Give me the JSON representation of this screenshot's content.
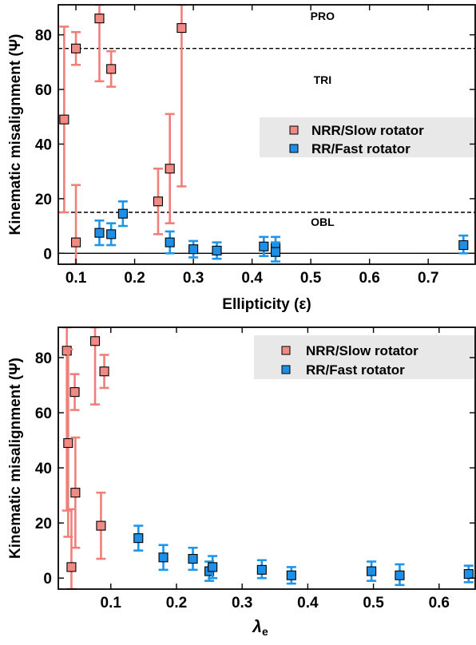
{
  "colors": {
    "slow": "#f08a84",
    "slow_err": "#f07f7a",
    "fast": "#1d8fe6",
    "fast_err": "#1d95ea",
    "legend_bg": "#e8e8e8"
  },
  "legend": {
    "slow_label": "NRR/Slow rotator",
    "fast_label": "RR/Fast rotator"
  },
  "chart_data": [
    {
      "type": "scatter",
      "xlabel": "Ellipticity (ε)",
      "ylabel": "Kinematic misalignment (Ψ)",
      "xlim": [
        0.07,
        0.78
      ],
      "ylim": [
        -4,
        91
      ],
      "xticks": [
        "0.1",
        "0.2",
        "0.3",
        "0.4",
        "0.5",
        "0.6",
        "0.7"
      ],
      "xtick_values": [
        0.1,
        0.2,
        0.3,
        0.4,
        0.5,
        0.6,
        0.7
      ],
      "yticks": [
        "0",
        "20",
        "40",
        "60",
        "80"
      ],
      "ytick_values": [
        0,
        20,
        40,
        60,
        80
      ],
      "legend_position": "right",
      "reference_lines": [
        {
          "y": 75,
          "style": "dashed"
        },
        {
          "y": 15,
          "style": "dashed"
        },
        {
          "y": 0,
          "style": "solid"
        }
      ],
      "region_labels": [
        {
          "text": "PRO",
          "x": 0.52,
          "y": 85.5
        },
        {
          "text": "TRI",
          "x": 0.52,
          "y": 62
        },
        {
          "text": "OBL",
          "x": 0.52,
          "y": 10
        }
      ],
      "series": [
        {
          "name": "NRR/Slow rotator",
          "kind": "slow",
          "points": [
            {
              "x": 0.08,
              "y": 49,
              "lo": 15,
              "hi": 83
            },
            {
              "x": 0.1,
              "y": 75,
              "lo": 69,
              "hi": 81
            },
            {
              "x": 0.1,
              "y": 4,
              "lo": -4,
              "hi": 25
            },
            {
              "x": 0.14,
              "y": 86,
              "lo": 63,
              "hi": 91
            },
            {
              "x": 0.16,
              "y": 67.5,
              "lo": 61,
              "hi": 74
            },
            {
              "x": 0.24,
              "y": 19,
              "lo": 7,
              "hi": 31
            },
            {
              "x": 0.26,
              "y": 31,
              "lo": 11,
              "hi": 51
            },
            {
              "x": 0.28,
              "y": 82.5,
              "lo": 24.5,
              "hi": 91
            }
          ]
        },
        {
          "name": "RR/Fast rotator",
          "kind": "fast",
          "points": [
            {
              "x": 0.14,
              "y": 7.5,
              "lo": 3,
              "hi": 12
            },
            {
              "x": 0.16,
              "y": 7,
              "lo": 3,
              "hi": 11
            },
            {
              "x": 0.18,
              "y": 14.5,
              "lo": 10,
              "hi": 19
            },
            {
              "x": 0.26,
              "y": 4,
              "lo": 0,
              "hi": 8
            },
            {
              "x": 0.3,
              "y": 1.5,
              "lo": -1.5,
              "hi": 4.5
            },
            {
              "x": 0.34,
              "y": 1,
              "lo": -2,
              "hi": 4
            },
            {
              "x": 0.42,
              "y": 2.5,
              "lo": -1,
              "hi": 6
            },
            {
              "x": 0.44,
              "y": 2.5,
              "lo": -1,
              "hi": 6
            },
            {
              "x": 0.44,
              "y": 0.5,
              "lo": -3,
              "hi": 4
            },
            {
              "x": 0.76,
              "y": 3,
              "lo": 0,
              "hi": 6.5
            }
          ]
        }
      ]
    },
    {
      "type": "scatter",
      "xlabel": "λe",
      "ylabel": "Kinematic misalignment (Ψ)",
      "xlim": [
        0.02,
        0.655
      ],
      "ylim": [
        -4,
        91
      ],
      "xticks": [
        "0.1",
        "0.2",
        "0.3",
        "0.4",
        "0.5",
        "0.6"
      ],
      "xtick_values": [
        0.1,
        0.2,
        0.3,
        0.4,
        0.5,
        0.6
      ],
      "yticks": [
        "0",
        "20",
        "40",
        "60",
        "80"
      ],
      "ytick_values": [
        0,
        20,
        40,
        60,
        80
      ],
      "legend_position": "top-right",
      "reference_lines": [],
      "region_labels": [],
      "series": [
        {
          "name": "NRR/Slow rotator",
          "kind": "slow",
          "points": [
            {
              "x": 0.033,
              "y": 82.5,
              "lo": 24.5,
              "hi": 91
            },
            {
              "x": 0.035,
              "y": 49,
              "lo": 15,
              "hi": 83
            },
            {
              "x": 0.04,
              "y": 4,
              "lo": -4,
              "hi": 25
            },
            {
              "x": 0.045,
              "y": 67.5,
              "lo": 61,
              "hi": 74
            },
            {
              "x": 0.046,
              "y": 31,
              "lo": 11,
              "hi": 51
            },
            {
              "x": 0.076,
              "y": 86,
              "lo": 63,
              "hi": 91
            },
            {
              "x": 0.085,
              "y": 19,
              "lo": 7,
              "hi": 31
            },
            {
              "x": 0.09,
              "y": 75,
              "lo": 69,
              "hi": 81
            }
          ]
        },
        {
          "name": "RR/Fast rotator",
          "kind": "fast",
          "points": [
            {
              "x": 0.142,
              "y": 14.5,
              "lo": 10,
              "hi": 19
            },
            {
              "x": 0.18,
              "y": 7.5,
              "lo": 3,
              "hi": 12
            },
            {
              "x": 0.225,
              "y": 7,
              "lo": 3,
              "hi": 11
            },
            {
              "x": 0.25,
              "y": 2.5,
              "lo": -1,
              "hi": 6
            },
            {
              "x": 0.255,
              "y": 4,
              "lo": 0,
              "hi": 8
            },
            {
              "x": 0.33,
              "y": 3,
              "lo": 0,
              "hi": 6.5
            },
            {
              "x": 0.375,
              "y": 1,
              "lo": -2,
              "hi": 4
            },
            {
              "x": 0.497,
              "y": 2.5,
              "lo": -1,
              "hi": 6
            },
            {
              "x": 0.54,
              "y": 1,
              "lo": -2.5,
              "hi": 5
            },
            {
              "x": 0.645,
              "y": 1.5,
              "lo": -1.5,
              "hi": 4.5
            }
          ]
        }
      ]
    }
  ]
}
